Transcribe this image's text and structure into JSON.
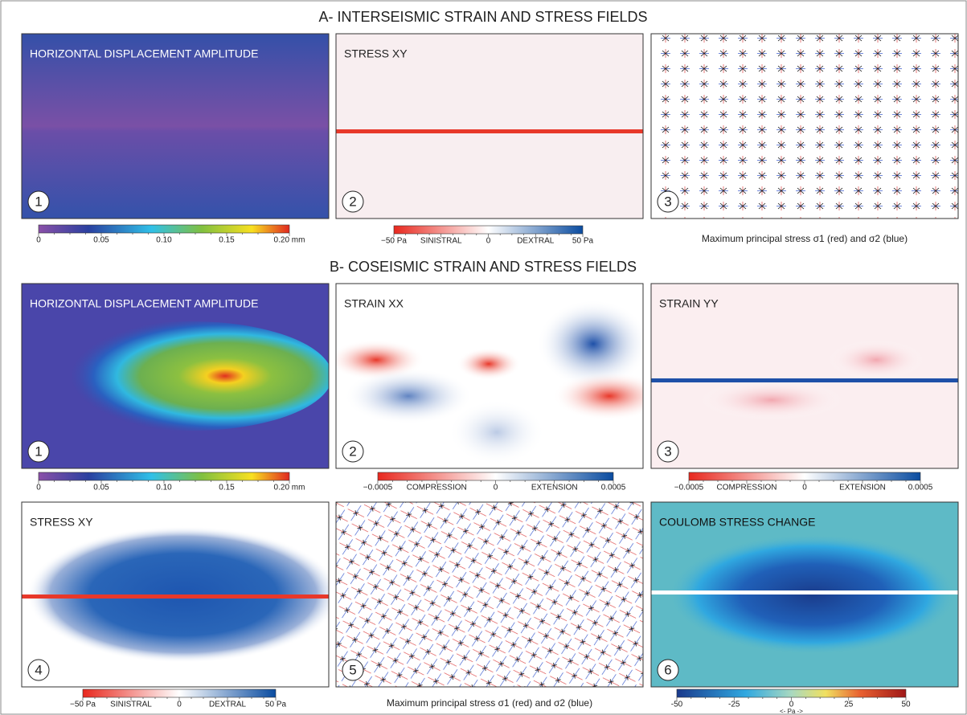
{
  "sections": [
    {
      "title": "A- INTERSEISMIC STRAIN AND STRESS FIELDS",
      "panels": [
        {
          "label": "HORIZONTAL DISPLACEMENT AMPLITUDE",
          "number": "1",
          "colorbar": [
            "0",
            "0.05",
            "0.10",
            "0.15",
            "0.20 mm"
          ]
        },
        {
          "label": "STRESS XY",
          "number": "2",
          "colorbar": [
            "−50 Pa",
            "SINISTRAL",
            "0",
            "DEXTRAL",
            "50 Pa"
          ]
        },
        {
          "number": "3",
          "caption": "Maximum principal stress σ1 (red) and σ2 (blue)"
        }
      ]
    },
    {
      "title": "B- COSEISMIC STRAIN AND STRESS FIELDS",
      "panels": [
        {
          "label": "HORIZONTAL DISPLACEMENT AMPLITUDE",
          "number": "1",
          "colorbar": [
            "0",
            "0.05",
            "0.10",
            "0.15",
            "0.20 mm"
          ]
        },
        {
          "label": "STRAIN XX",
          "number": "2",
          "colorbar": [
            "−0.0005",
            "COMPRESSION",
            "0",
            "EXTENSION",
            "0.0005"
          ]
        },
        {
          "label": "STRAIN YY",
          "number": "3",
          "colorbar": [
            "−0.0005",
            "COMPRESSION",
            "0",
            "EXTENSION",
            "0.0005"
          ]
        },
        {
          "label": "STRESS XY",
          "number": "4",
          "colorbar": [
            "−50 Pa",
            "SINISTRAL",
            "0",
            "DEXTRAL",
            "50 Pa"
          ]
        },
        {
          "number": "5",
          "caption": "Maximum principal stress σ1 (red) and σ2 (blue)"
        },
        {
          "label": "COULOMB STRESS CHANGE",
          "number": "6",
          "colorbar": [
            "-50",
            "-25",
            "0",
            "25",
            "50"
          ],
          "colorbar_unit": "<- Pa ->"
        }
      ]
    }
  ]
}
